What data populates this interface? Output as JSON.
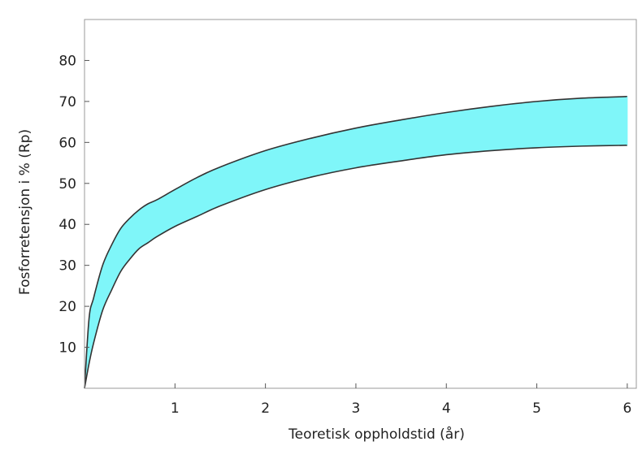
{
  "chart_data": {
    "type": "area",
    "title": "",
    "xlabel": "Teoretisk oppholdstid (år)",
    "ylabel": "Fosforretensjon i % (Rp)",
    "xlim": [
      0,
      6.1
    ],
    "ylim": [
      0,
      90
    ],
    "x_ticks": [
      1,
      2,
      3,
      4,
      5,
      6
    ],
    "x_tick_labels": [
      "1",
      "2",
      "3",
      "4",
      "5",
      "6"
    ],
    "y_ticks": [
      10,
      20,
      30,
      40,
      50,
      60,
      70,
      80
    ],
    "y_tick_labels": [
      "10",
      "20",
      "30",
      "40",
      "50",
      "60",
      "70",
      "80"
    ],
    "grid": false,
    "legend": false,
    "fill_color": "#7ff6f9",
    "line_color": "#333333",
    "series": [
      {
        "x": [
          0,
          0.05,
          0.1,
          0.2,
          0.3,
          0.4,
          0.5,
          0.6,
          0.7,
          0.8,
          1.0,
          1.25,
          1.5,
          2.0,
          2.5,
          3.0,
          3.5,
          4.0,
          4.5,
          5.0,
          5.5,
          6.0
        ],
        "values": [
          0,
          17,
          22,
          30,
          35,
          39,
          41.5,
          43.5,
          45,
          46,
          48.5,
          51.5,
          54,
          58,
          61,
          63.5,
          65.5,
          67.3,
          68.8,
          70,
          70.8,
          71.2
        ]
      },
      {
        "x": [
          0,
          0.05,
          0.1,
          0.2,
          0.3,
          0.4,
          0.5,
          0.6,
          0.7,
          0.8,
          1.0,
          1.25,
          1.5,
          2.0,
          2.5,
          3.0,
          3.5,
          4.0,
          4.5,
          5.0,
          5.5,
          6.0
        ],
        "values": [
          0,
          6,
          11,
          19,
          24,
          28.5,
          31.5,
          34,
          35.5,
          37,
          39.5,
          42,
          44.5,
          48.5,
          51.5,
          53.8,
          55.5,
          57,
          58,
          58.7,
          59.1,
          59.3
        ]
      }
    ]
  }
}
